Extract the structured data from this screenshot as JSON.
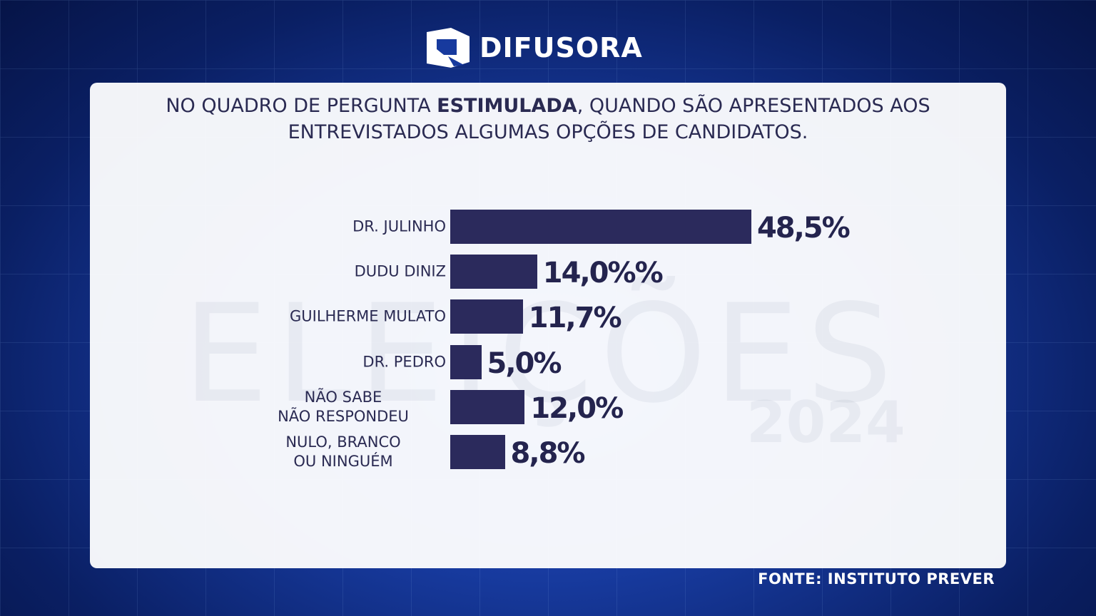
{
  "header": {
    "logo": "DIFUSORA"
  },
  "background": {
    "watermark": "ELEIÇÕES",
    "year": "2024"
  },
  "chart_data": {
    "type": "bar",
    "orientation": "horizontal",
    "title": [
      "NO QUADRO DE PERGUNTA ",
      "ESTIMULADA",
      ", QUANDO SÃO APRESENTADOS AOS ENTREVISTADOS ALGUMAS OPÇÕES DE CANDIDATOS."
    ],
    "categories": [
      "DR. JULINHO",
      "DUDU DINIZ",
      "GUILHERME MULATO",
      "DR. PEDRO",
      "NÃO SABE\nNÃO RESPONDEU",
      "NULO, BRANCO\nOU NINGUÉM"
    ],
    "values": [
      48.5,
      14.0,
      11.7,
      5.0,
      12.0,
      8.8
    ],
    "value_labels": [
      "48,5%",
      "14,0%%",
      "11,7%",
      "5,0%",
      "12,0%",
      "8,8%"
    ],
    "color": "#2b2a5c"
  },
  "footer": {
    "source": "FONTE: INSTITUTO PREVER"
  }
}
